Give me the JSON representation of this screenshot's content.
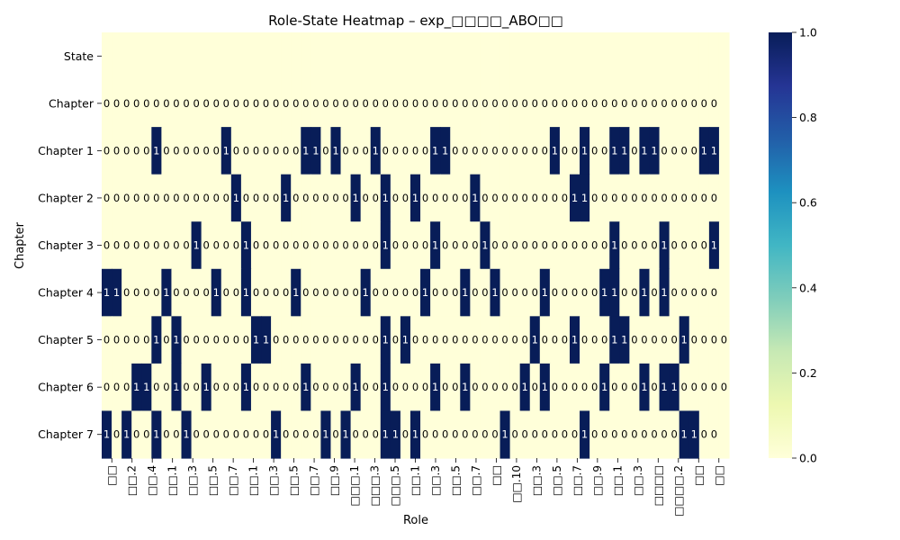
{
  "chart_data": {
    "type": "heatmap",
    "title": "Role-State Heatmap – exp_□□□□_ABO□□",
    "xlabel": "Role",
    "ylabel": "Chapter",
    "rows": [
      "State",
      "Chapter",
      "Chapter 1",
      "Chapter 2",
      "Chapter 3",
      "Chapter 4",
      "Chapter 5",
      "Chapter 6",
      "Chapter 7"
    ],
    "x_tick_labels": [
      "□□",
      "□□.2",
      "□□.4",
      "□□.1",
      "□□.3",
      "□□.5",
      "□□.7",
      "□□.1",
      "□□.3",
      "□□.5",
      "□□.7",
      "□□.9",
      "□□□.1",
      "□□□.3",
      "□□□.5",
      "□□.1",
      "□□.3",
      "□□.5",
      "□□.7",
      "□□",
      "□□.10",
      "□□.3",
      "□□.5",
      "□□.7",
      "□□.9",
      "□□.1",
      "□□.3",
      "□□□□",
      "□□□□.2",
      "□□",
      "□□"
    ],
    "values": [
      null,
      [
        0,
        0,
        0,
        0,
        0,
        0,
        0,
        0,
        0,
        0,
        0,
        0,
        0,
        0,
        0,
        0,
        0,
        0,
        0,
        0,
        0,
        0,
        0,
        0,
        0,
        0,
        0,
        0,
        0,
        0,
        0,
        0,
        0,
        0,
        0,
        0,
        0,
        0,
        0,
        0,
        0,
        0,
        0,
        0,
        0,
        0,
        0,
        0,
        0,
        0,
        0,
        0,
        0,
        0,
        0,
        0,
        0,
        0,
        0,
        0,
        0,
        0
      ],
      [
        0,
        0,
        0,
        0,
        0,
        1,
        0,
        0,
        0,
        0,
        0,
        0,
        1,
        0,
        0,
        0,
        0,
        0,
        0,
        0,
        1,
        1,
        0,
        1,
        0,
        0,
        0,
        1,
        0,
        0,
        0,
        0,
        0,
        1,
        1,
        0,
        0,
        0,
        0,
        0,
        0,
        0,
        0,
        0,
        0,
        1,
        0,
        0,
        1,
        0,
        0,
        1,
        1,
        0,
        1,
        1,
        0,
        0,
        0,
        0,
        1,
        1
      ],
      [
        0,
        0,
        0,
        0,
        0,
        0,
        0,
        0,
        0,
        0,
        0,
        0,
        0,
        1,
        0,
        0,
        0,
        0,
        1,
        0,
        0,
        0,
        0,
        0,
        0,
        1,
        0,
        0,
        1,
        0,
        0,
        1,
        0,
        0,
        0,
        0,
        0,
        1,
        0,
        0,
        0,
        0,
        0,
        0,
        0,
        0,
        0,
        1,
        1,
        0,
        0,
        0,
        0,
        0,
        0,
        0,
        0,
        0,
        0,
        0,
        0,
        0
      ],
      [
        0,
        0,
        0,
        0,
        0,
        0,
        0,
        0,
        0,
        1,
        0,
        0,
        0,
        0,
        1,
        0,
        0,
        0,
        0,
        0,
        0,
        0,
        0,
        0,
        0,
        0,
        0,
        0,
        1,
        0,
        0,
        0,
        0,
        1,
        0,
        0,
        0,
        0,
        1,
        0,
        0,
        0,
        0,
        0,
        0,
        0,
        0,
        0,
        0,
        0,
        0,
        1,
        0,
        0,
        0,
        0,
        1,
        0,
        0,
        0,
        0,
        1
      ],
      [
        1,
        1,
        0,
        0,
        0,
        0,
        1,
        0,
        0,
        0,
        0,
        1,
        0,
        0,
        1,
        0,
        0,
        0,
        0,
        1,
        0,
        0,
        0,
        0,
        0,
        0,
        1,
        0,
        0,
        0,
        0,
        0,
        1,
        0,
        0,
        0,
        1,
        0,
        0,
        1,
        0,
        0,
        0,
        0,
        1,
        0,
        0,
        0,
        0,
        0,
        1,
        1,
        0,
        0,
        1,
        0,
        1,
        0,
        0,
        0,
        0,
        0
      ],
      [
        0,
        0,
        0,
        0,
        0,
        1,
        0,
        1,
        0,
        0,
        0,
        0,
        0,
        0,
        0,
        1,
        1,
        0,
        0,
        0,
        0,
        0,
        0,
        0,
        0,
        0,
        0,
        0,
        1,
        0,
        1,
        0,
        0,
        0,
        0,
        0,
        0,
        0,
        0,
        0,
        0,
        0,
        0,
        1,
        0,
        0,
        0,
        1,
        0,
        0,
        0,
        1,
        1,
        0,
        0,
        0,
        0,
        0,
        1,
        0,
        0,
        0,
        0
      ],
      [
        0,
        0,
        0,
        1,
        1,
        0,
        0,
        1,
        0,
        0,
        1,
        0,
        0,
        0,
        1,
        0,
        0,
        0,
        0,
        0,
        1,
        0,
        0,
        0,
        0,
        1,
        0,
        0,
        1,
        0,
        0,
        0,
        0,
        1,
        0,
        0,
        1,
        0,
        0,
        0,
        0,
        0,
        1,
        0,
        1,
        0,
        0,
        0,
        0,
        0,
        1,
        0,
        0,
        0,
        1,
        0,
        1,
        1,
        0,
        0,
        0,
        0,
        0
      ],
      [
        1,
        0,
        1,
        0,
        0,
        1,
        0,
        0,
        1,
        0,
        0,
        0,
        0,
        0,
        0,
        0,
        0,
        1,
        0,
        0,
        0,
        0,
        1,
        0,
        1,
        0,
        0,
        0,
        1,
        1,
        0,
        1,
        0,
        0,
        0,
        0,
        0,
        0,
        0,
        0,
        1,
        0,
        0,
        0,
        0,
        0,
        0,
        0,
        1,
        0,
        0,
        0,
        0,
        0,
        0,
        0,
        0,
        0,
        1,
        1,
        0,
        0
      ]
    ],
    "annotations": true,
    "colormap": "YlGnBu",
    "colors": {
      "low": "#ffffd9",
      "high": "#081d58"
    },
    "colorbar": {
      "min": 0.0,
      "max": 1.0,
      "ticks": [
        "0.0",
        "0.2",
        "0.4",
        "0.6",
        "0.8",
        "1.0"
      ]
    }
  }
}
